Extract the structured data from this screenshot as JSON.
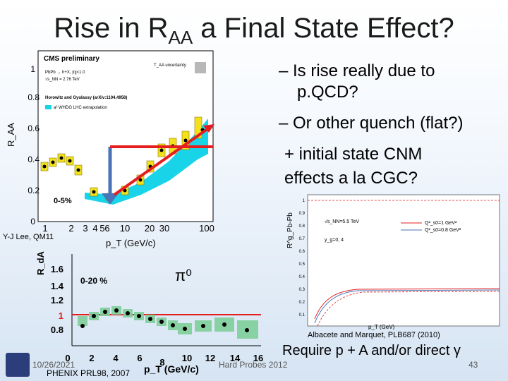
{
  "slide": {
    "title_main": "Rise in R",
    "title_sub": "AA",
    "title_rest": " a Final State Effect?",
    "bullet1": "– Is rise really due to",
    "bullet1b": "p.QCD?",
    "bullet2": "– Or other quench (flat?)",
    "bullet3": "+ initial state CNM",
    "bullet3b": "effects a la CGC?",
    "require": "Require p + A and/or direct γ",
    "date": "10/26/2021",
    "footer_center": "Hard Probes 2012",
    "page_number": "43",
    "credit_left": "Y-J Lee, QM11",
    "credit_phenix": "PHENIX PRL98, 2007",
    "credit_right": "Albacete and Marquet, PLB687 (2010)"
  },
  "plot_raa": {
    "header": "CMS preliminary",
    "taa_label": "T_AA uncertainty",
    "line1": "PbPb → h+X, |η|<1.0",
    "line2": "√s_NN = 2.76 TeV",
    "line3": "Horowitz and Gyulassy (arXiv:1104.4958)",
    "line4": "a² WHDG LHC extrapolation",
    "centrality": "0-5%",
    "ylabel": "R_AA",
    "xlabel": "p_T (GeV/c)",
    "yticks": [
      "0",
      "0.2",
      "0.4",
      "0.6",
      "0.8",
      "1"
    ],
    "xticks": [
      "1",
      "2",
      "3",
      "4",
      "5",
      "6",
      "10",
      "20",
      "30",
      "100"
    ]
  },
  "plot_rda": {
    "ylabel": "R_dA",
    "xlabel": "p_T (GeV/c)",
    "centrality": "0-20 %",
    "particle": "π⁰",
    "yticks": [
      "0.8",
      "1",
      "1.2",
      "1.4",
      "1.6"
    ],
    "xticks": [
      "0",
      "2",
      "4",
      "6",
      "8",
      "10",
      "12",
      "14",
      "16"
    ]
  },
  "plot_rpbpb": {
    "ylabel": "R^g_Pb-Pb",
    "xlabel": "p_T (GeV)",
    "energy": "√s_NN=5.5 TeV",
    "eta": "y_g=0, 4",
    "legend1": "Q²_s0=1 GeV²",
    "legend2": "Q²_s0=0.8 GeV²",
    "yticks": [
      "1",
      "0.9",
      "0.8",
      "0.7",
      "0.6",
      "0.5",
      "0.4",
      "0.3",
      "0.2",
      "0.1"
    ]
  },
  "colors": {
    "annotation_red": "#e41e1e",
    "annotation_blue": "#4a74b8",
    "band_cyan": "#19d3e8",
    "band_green": "#7fcf9a",
    "box_yellow": "#f2e11c"
  }
}
